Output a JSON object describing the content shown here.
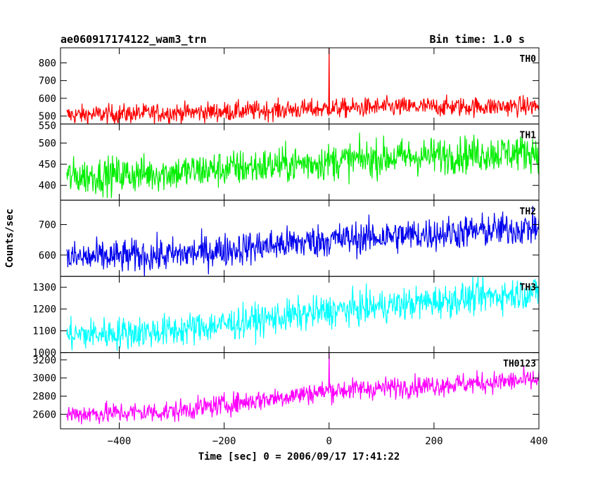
{
  "header": {
    "title": "ae060917174122_wam3_trn",
    "bin_time": "Bin time: 1.0 s"
  },
  "chart_data": {
    "type": "line",
    "title": "ae060917174122_wam3_trn",
    "xlabel": "Time [sec] 0 = 2006/09/17 17:41:22",
    "ylabel": "Counts/sec",
    "xlim": [
      -512,
      400
    ],
    "x_ticks": [
      -400,
      -200,
      0,
      200,
      400
    ],
    "x_tick_labels": [
      "−400",
      "−200",
      "0",
      "200",
      "400"
    ],
    "bin_time_s": 1.0,
    "series": [
      {
        "name": "TH0",
        "color": "#ff0000",
        "ylim": [
          455,
          885
        ],
        "y_ticks": [
          500,
          600,
          700,
          800
        ],
        "y_tick_labels": [
          "500",
          "600",
          "700",
          "800"
        ],
        "y_extra_label": "550",
        "trend": [
          [
            -500,
            505
          ],
          [
            -200,
            525
          ],
          [
            100,
            550
          ],
          [
            400,
            555
          ]
        ],
        "noise": 28,
        "spikes": [
          [
            0,
            885
          ]
        ]
      },
      {
        "name": "TH1",
        "color": "#00ee00",
        "ylim": [
          365,
          545
        ],
        "y_ticks": [
          400,
          450,
          500
        ],
        "y_tick_labels": [
          "400",
          "450",
          "500"
        ],
        "trend": [
          [
            -500,
            420
          ],
          [
            -300,
            430
          ],
          [
            100,
            465
          ],
          [
            400,
            480
          ]
        ],
        "noise": 22,
        "spikes": []
      },
      {
        "name": "TH2",
        "color": "#0000ee",
        "ylim": [
          530,
          780
        ],
        "y_ticks": [
          600,
          700
        ],
        "y_tick_labels": [
          "600",
          "700"
        ],
        "trend": [
          [
            -500,
            590
          ],
          [
            -300,
            600
          ],
          [
            0,
            650
          ],
          [
            400,
            690
          ]
        ],
        "noise": 28,
        "spikes": []
      },
      {
        "name": "TH3",
        "color": "#00ffff",
        "ylim": [
          1000,
          1350
        ],
        "y_ticks": [
          1000,
          1100,
          1200,
          1300
        ],
        "y_tick_labels": [
          "1000",
          "1100",
          "1200",
          "1300"
        ],
        "trend": [
          [
            -500,
            1080
          ],
          [
            -300,
            1100
          ],
          [
            0,
            1190
          ],
          [
            400,
            1280
          ]
        ],
        "noise": 38,
        "spikes": []
      },
      {
        "name": "TH0123",
        "color": "#ff00ff",
        "ylim": [
          2440,
          3280
        ],
        "y_ticks": [
          2600,
          2800,
          3000,
          3200
        ],
        "y_tick_labels": [
          "2600",
          "2800",
          "3000",
          "3200"
        ],
        "trend": [
          [
            -500,
            2600
          ],
          [
            -300,
            2630
          ],
          [
            0,
            2860
          ],
          [
            400,
            2980
          ]
        ],
        "noise": 60,
        "spikes": [
          [
            0,
            3280
          ]
        ]
      }
    ]
  }
}
